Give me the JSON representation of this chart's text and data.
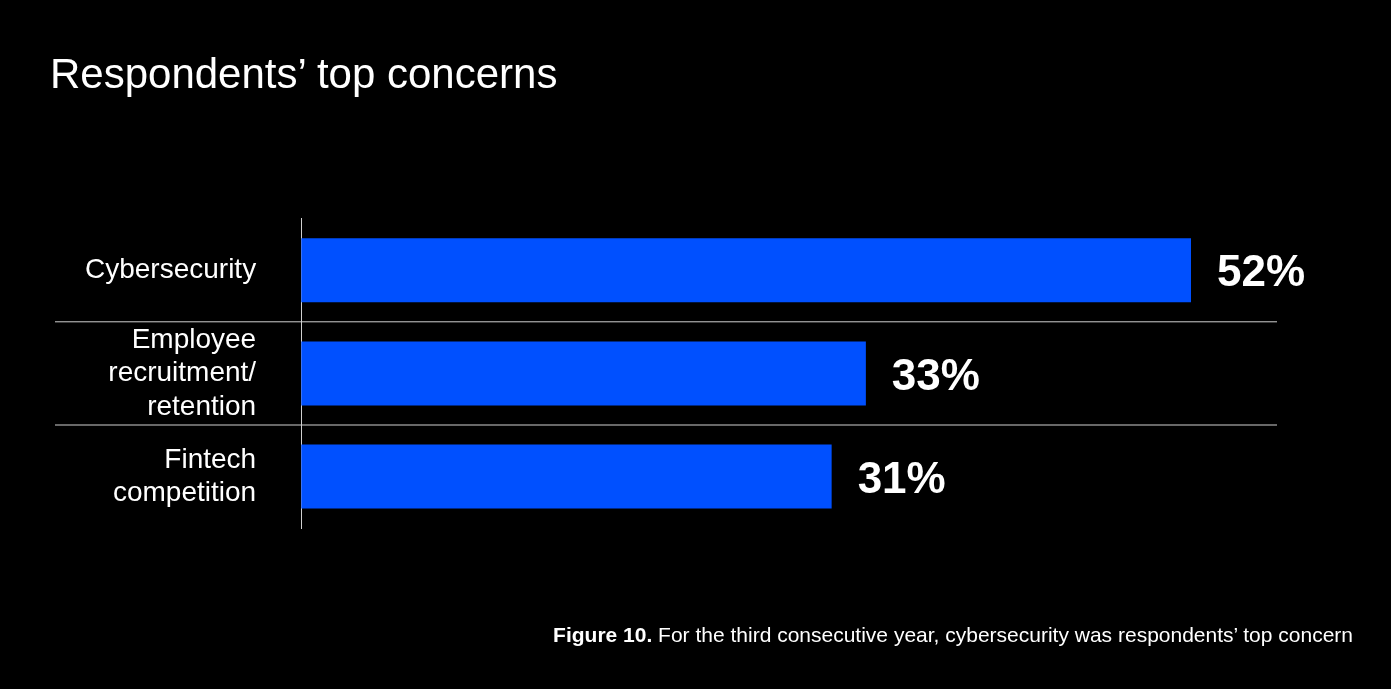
{
  "chart_data": {
    "type": "bar",
    "orientation": "horizontal",
    "title": "Respondents’ top concerns",
    "categories": [
      "Cybersecurity",
      "Employee recruitment/ retention",
      "Fintech competition"
    ],
    "values": [
      52,
      33,
      31
    ],
    "color": "#0050ff",
    "value_labels": [
      "52%",
      "33%",
      "31%"
    ],
    "grid": "y",
    "legend": false,
    "tick_labels": "y",
    "annotations": [
      "Figure 10. For the third consecutive year, cybersecurity was respondents’ top concern"
    ]
  }
}
